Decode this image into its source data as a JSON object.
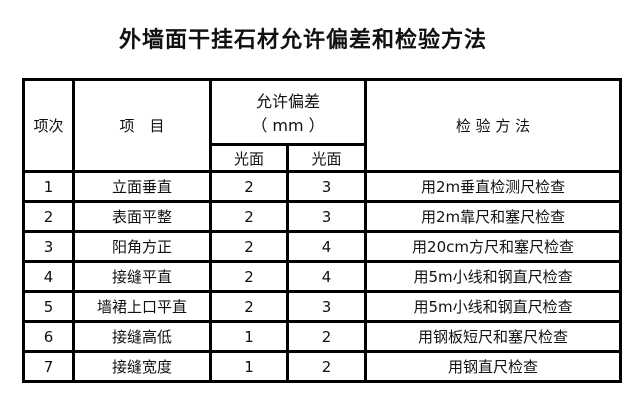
{
  "title": "外墙面干挂石材允许偏差和检验方法",
  "headers": {
    "index": "项次",
    "item": "项　目",
    "tolerance": "允许偏差",
    "unit": "（ mm ）",
    "sub1": "光面",
    "sub2": "光面",
    "method": "检 验 方 法"
  },
  "rows": [
    {
      "index": "1",
      "item": "立面垂直",
      "a": "2",
      "b": "3",
      "method": "用2m垂直检测尺检查"
    },
    {
      "index": "2",
      "item": "表面平整",
      "a": "2",
      "b": "3",
      "method": "用2m靠尺和塞尺检查"
    },
    {
      "index": "3",
      "item": "阳角方正",
      "a": "2",
      "b": "4",
      "method": "用20cm方尺和塞尺检查"
    },
    {
      "index": "4",
      "item": "接缝平直",
      "a": "2",
      "b": "4",
      "method": "用5m小线和钢直尺检查"
    },
    {
      "index": "5",
      "item": "墙裙上口平直",
      "a": "2",
      "b": "3",
      "method": "用5m小线和钢直尺检查"
    },
    {
      "index": "6",
      "item": "接缝高低",
      "a": "1",
      "b": "2",
      "method": "用钢板短尺和塞尺检查"
    },
    {
      "index": "7",
      "item": "接缝宽度",
      "a": "1",
      "b": "2",
      "method": "用钢直尺检查"
    }
  ]
}
